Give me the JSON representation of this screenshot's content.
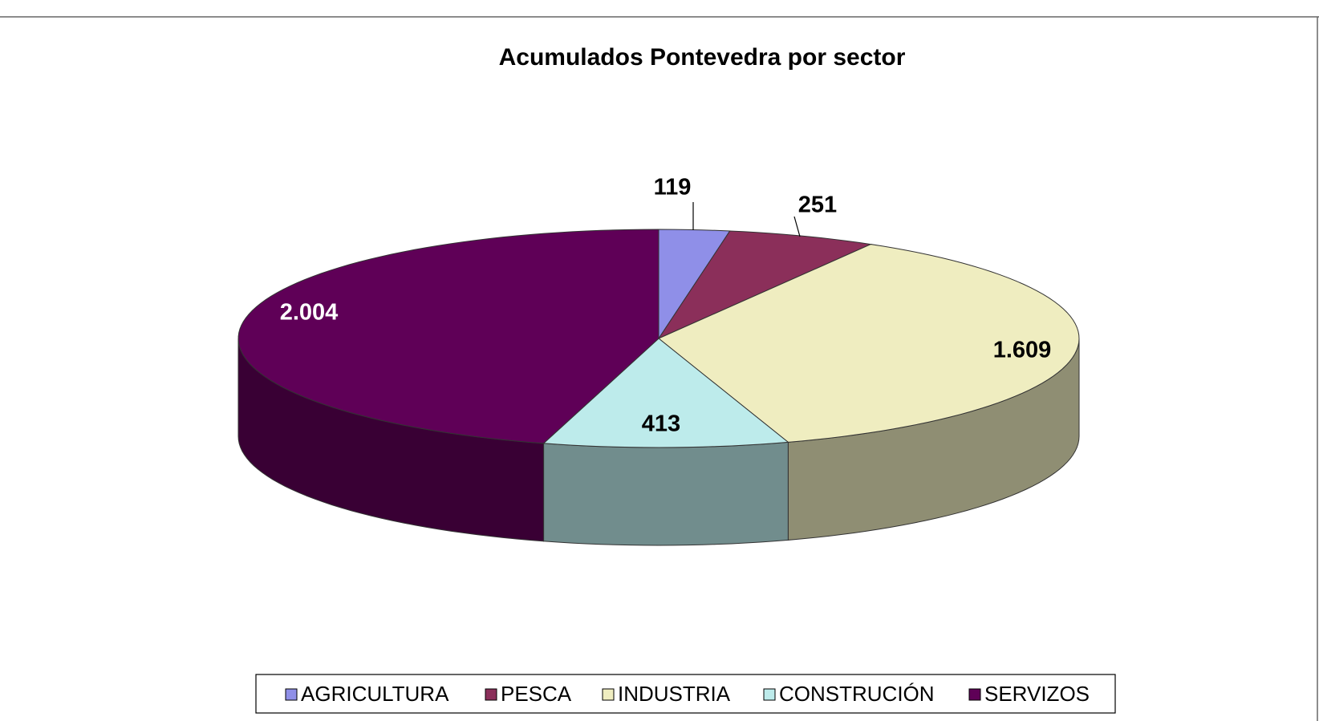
{
  "chart_data": {
    "type": "pie3d",
    "title": "Acumulados Pontevedra por sector",
    "categories": [
      "AGRICULTURA",
      "PESCA",
      "INDUSTRIA",
      "CONSTRUCIÓN",
      "SERVIZOS"
    ],
    "values": [
      119,
      251,
      1609,
      413,
      2004
    ],
    "value_labels": [
      "119",
      "251",
      "1.609",
      "413",
      "2.004"
    ],
    "colors": [
      "#8f8fe8",
      "#8b2f5a",
      "#efedc0",
      "#bdebeb",
      "#5f0057"
    ],
    "legend": "bottom"
  }
}
